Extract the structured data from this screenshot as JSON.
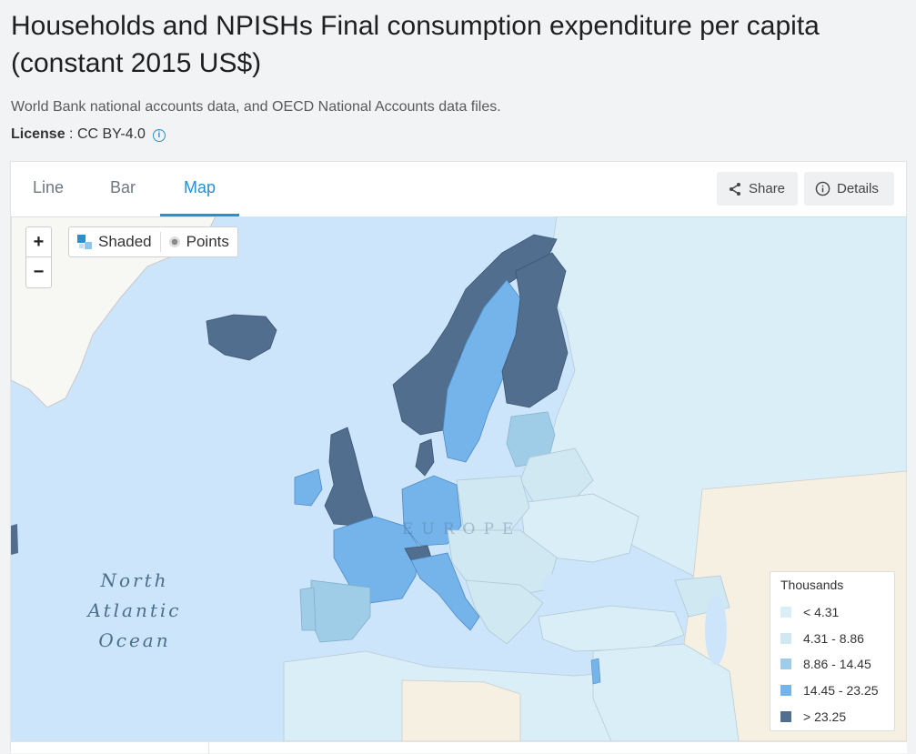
{
  "page": {
    "title": "Households and NPISHs Final consumption expenditure per capita (constant 2015 US$)",
    "source": "World Bank national accounts data, and OECD National Accounts data files.",
    "license_label": "License",
    "license_value": "CC BY-4.0"
  },
  "tabs": [
    {
      "label": "Line",
      "active": false
    },
    {
      "label": "Bar",
      "active": false
    },
    {
      "label": "Map",
      "active": true
    }
  ],
  "actions": {
    "share_label": "Share",
    "details_label": "Details"
  },
  "map_controls": {
    "zoom_in": "+",
    "zoom_out": "−",
    "mode_shaded": "Shaded",
    "mode_points": "Points"
  },
  "map_labels": {
    "ocean": "North Atlantic Ocean",
    "region": "EUROPE"
  },
  "legend": {
    "title": "Thousands",
    "bins": [
      {
        "label": "< 4.31",
        "color": "#d9eef7"
      },
      {
        "label": "4.31 - 8.86",
        "color": "#cfe8f2"
      },
      {
        "label": "8.86 - 14.45",
        "color": "#9fcce6"
      },
      {
        "label": "14.45 - 23.25",
        "color": "#74b4ea"
      },
      {
        "label": "> 23.25",
        "color": "#526e8e"
      }
    ]
  },
  "colors": {
    "accent": "#2a8fcc",
    "sea": "#cde5fa",
    "no_data": "#f5f2ea"
  }
}
